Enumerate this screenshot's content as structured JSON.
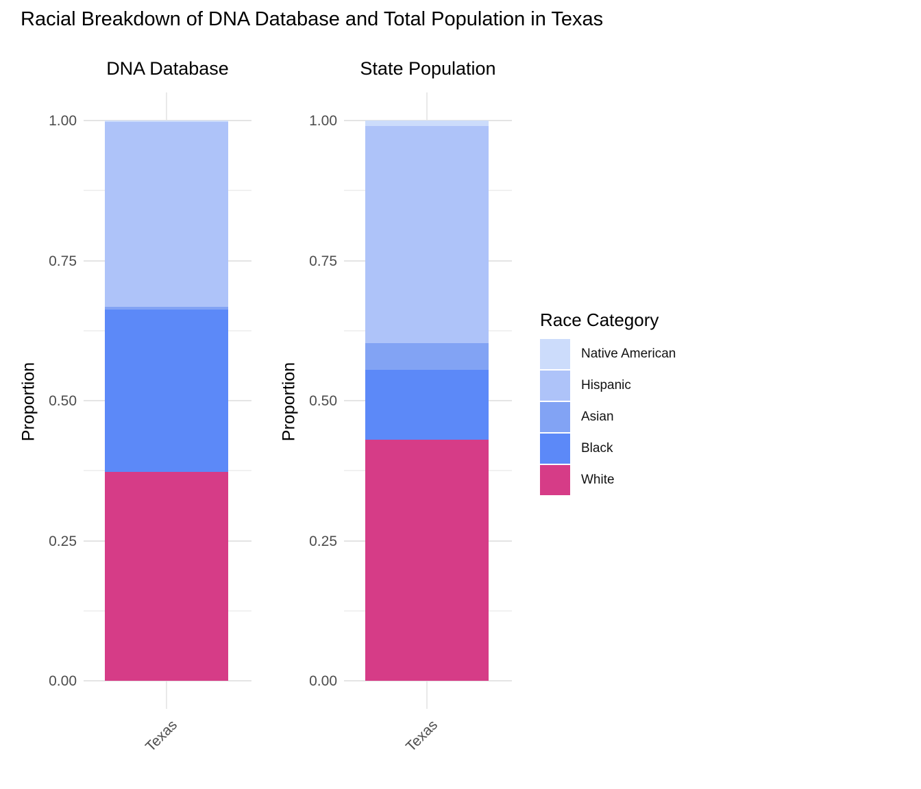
{
  "title": "Racial Breakdown of DNA Database and Total Population in Texas",
  "legend": {
    "title": "Race Category",
    "entries": [
      {
        "label": "Native American",
        "color": "#ccdcfb"
      },
      {
        "label": "Hispanic",
        "color": "#aec3f9"
      },
      {
        "label": "Asian",
        "color": "#82a3f4"
      },
      {
        "label": "Black",
        "color": "#5c89f8"
      },
      {
        "label": "White",
        "color": "#d63c87"
      }
    ],
    "position": "right"
  },
  "axis": {
    "y_label": "Proportion",
    "y_tick_labels": [
      "1.00",
      "0.75",
      "0.50",
      "0.25",
      "0.00"
    ],
    "y_tick_values": [
      1.0,
      0.75,
      0.5,
      0.25,
      0.0
    ],
    "y_minor_tick_values": [
      0.875,
      0.625,
      0.375,
      0.125
    ],
    "x_tick_label": "Texas"
  },
  "chart_data": {
    "type": "bar",
    "stacked": true,
    "grid": true,
    "ylim": [
      0,
      1
    ],
    "ylabel": "Proportion",
    "categories": [
      "Texas"
    ],
    "stack_order_bottom_to_top": [
      "White",
      "Black",
      "Asian",
      "Hispanic",
      "Native American"
    ],
    "panels": [
      {
        "title": "DNA Database",
        "category": "Texas",
        "series": [
          {
            "name": "Native American",
            "value": 0.002,
            "color": "#ccdcfb"
          },
          {
            "name": "Hispanic",
            "value": 0.33,
            "color": "#aec3f9"
          },
          {
            "name": "Asian",
            "value": 0.006,
            "color": "#82a3f4"
          },
          {
            "name": "Black",
            "value": 0.289,
            "color": "#5c89f8"
          },
          {
            "name": "White",
            "value": 0.373,
            "color": "#d63c87"
          }
        ]
      },
      {
        "title": "State Population",
        "category": "Texas",
        "series": [
          {
            "name": "Native American",
            "value": 0.01,
            "color": "#ccdcfb"
          },
          {
            "name": "Hispanic",
            "value": 0.387,
            "color": "#aec3f9"
          },
          {
            "name": "Asian",
            "value": 0.048,
            "color": "#82a3f4"
          },
          {
            "name": "Black",
            "value": 0.125,
            "color": "#5c89f8"
          },
          {
            "name": "White",
            "value": 0.43,
            "color": "#d63c87"
          }
        ]
      }
    ]
  }
}
